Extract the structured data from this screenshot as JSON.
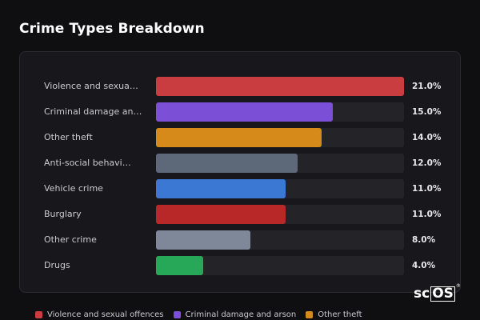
{
  "chart_data": {
    "type": "bar",
    "orientation": "horizontal",
    "title": "Crime Types Breakdown",
    "value_suffix": "%",
    "xlim": [
      0,
      21
    ],
    "grid": false,
    "legend_placement": "bottom",
    "categories": [
      "Violence and sexua…",
      "Criminal damage an…",
      "Other theft",
      "Anti-social behavi…",
      "Vehicle crime",
      "Burglary",
      "Other crime",
      "Drugs"
    ],
    "values": [
      21.0,
      15.0,
      14.0,
      12.0,
      11.0,
      11.0,
      8.0,
      4.0
    ],
    "value_labels": [
      "21.0%",
      "15.0%",
      "14.0%",
      "12.0%",
      "11.0%",
      "11.0%",
      "8.0%",
      "4.0%"
    ],
    "colors": [
      "#c93c40",
      "#7b4fd6",
      "#d68a1a",
      "#5d6878",
      "#3a78d4",
      "#b82828",
      "#7e8898",
      "#27a858"
    ],
    "legend": [
      {
        "label": "Violence and sexual offences",
        "color": "#c93c40"
      },
      {
        "label": "Criminal damage and arson",
        "color": "#7b4fd6"
      },
      {
        "label": "Other theft",
        "color": "#d68a1a"
      }
    ]
  },
  "logo": {
    "prefix": "sc",
    "boxed": "OS",
    "mark": "®"
  }
}
